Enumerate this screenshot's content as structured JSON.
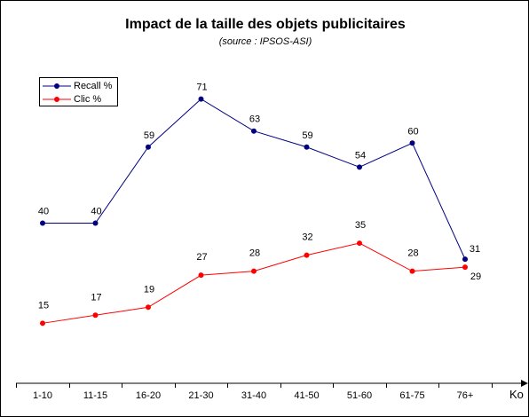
{
  "chart_data": {
    "type": "line",
    "title": "Impact de la taille des objets publicitaires",
    "subtitle": "(source : IPSOS-ASI)",
    "xlabel": "Ko",
    "ylabel": "",
    "categories": [
      "1-10",
      "11-15",
      "16-20",
      "21-30",
      "31-40",
      "41-50",
      "51-60",
      "61-75",
      "76+"
    ],
    "ylim": [
      0,
      80
    ],
    "grid": false,
    "legend_position": "top-left",
    "series": [
      {
        "name": "Recall %",
        "color": "#000080",
        "values": [
          40,
          40,
          59,
          71,
          63,
          59,
          54,
          60,
          31
        ]
      },
      {
        "name": "Clic %",
        "color": "#ff0000",
        "values": [
          15,
          17,
          19,
          27,
          28,
          32,
          35,
          28,
          29
        ]
      }
    ]
  }
}
